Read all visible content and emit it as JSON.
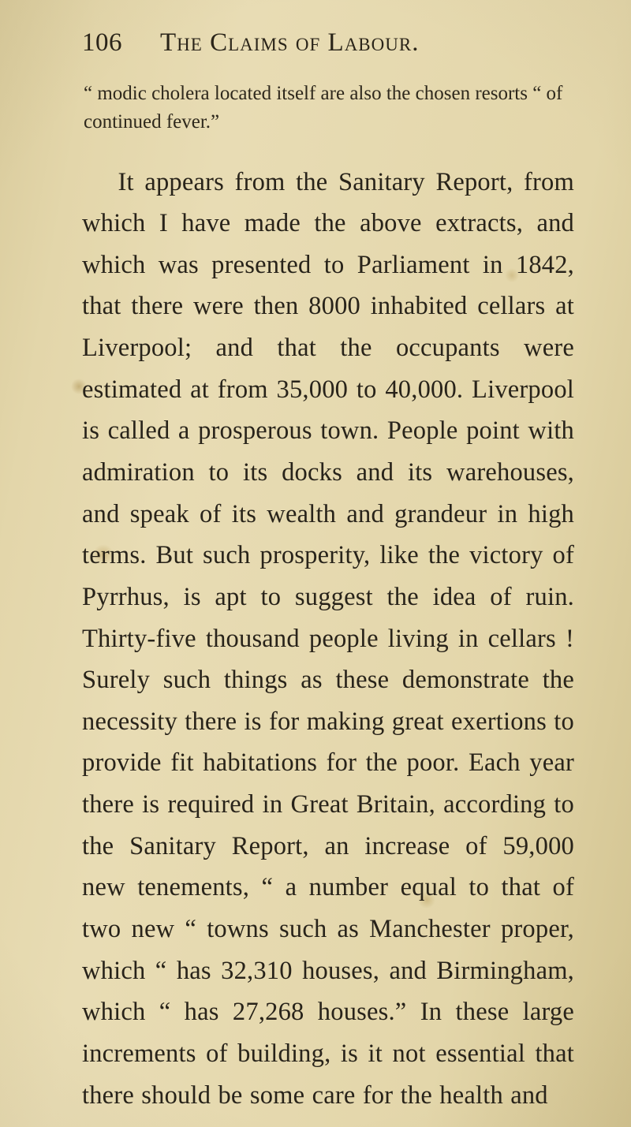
{
  "page": {
    "number": "106",
    "running_title": "The Claims of Labour.",
    "background_color": "#e3d6aa",
    "vignette_color": "#d2c390",
    "text_color": "#2a2419",
    "font_family": "Times New Roman",
    "header_fontsize_pt": 25,
    "quote_fontsize_pt": 19,
    "body_fontsize_pt": 24,
    "body_line_height": 1.62
  },
  "quote": {
    "text": "“ modic cholera located itself are also the chosen resorts “ of continued fever.”"
  },
  "body": {
    "text": "It appears from the Sanitary Report, from which I have made the above extracts, and which was presented to Parliament in 1842, that there were then 8000 inhabited cellars at Liverpool; and that the occupants were estimated at from 35,000 to 40,000. Liverpool is called a prosperous town. People point with admiration to its docks and its warehouses, and speak of its wealth and grandeur in high terms. But such prosperity, like the victory of Pyrrhus, is apt to suggest the idea of ruin. Thirty-five thousand people living in cellars ! Surely such things as these demonstrate the necessity there is for making great exertions to provide fit habitations for the poor. Each year there is required in Great Britain, according to the Sanitary Report, an increase of 59,000 new tenements, “ a number equal to that of two new “ towns such as Manchester proper, which “ has 32,310 houses, and Birmingham, which “ has 27,268 houses.” In these large increments of building, is it not essential that there should be some care for the health and"
  }
}
